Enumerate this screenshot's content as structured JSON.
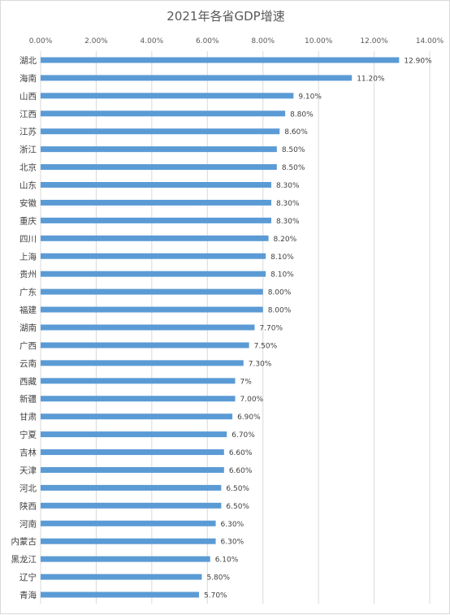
{
  "chart_data": {
    "type": "bar",
    "orientation": "horizontal",
    "title": "2021年各省GDP增速",
    "xlim": [
      0,
      14
    ],
    "x_ticks": [
      0,
      2,
      4,
      6,
      8,
      10,
      12,
      14
    ],
    "x_tick_labels": [
      "0.00%",
      "2.00%",
      "4.00%",
      "6.00%",
      "8.00%",
      "10.00%",
      "12.00%",
      "14.00%"
    ],
    "axis_position": "top",
    "grid": true,
    "bar_color": "#5b9bd5",
    "categories": [
      "湖北",
      "海南",
      "山西",
      "江西",
      "江苏",
      "浙江",
      "北京",
      "山东",
      "安徽",
      "重庆",
      "四川",
      "上海",
      "贵州",
      "广东",
      "福建",
      "湖南",
      "广西",
      "云南",
      "西藏",
      "新疆",
      "甘肃",
      "宁夏",
      "吉林",
      "天津",
      "河北",
      "陕西",
      "河南",
      "内蒙古",
      "黑龙江",
      "辽宁",
      "青海"
    ],
    "values": [
      12.9,
      11.2,
      9.1,
      8.8,
      8.6,
      8.5,
      8.5,
      8.3,
      8.3,
      8.3,
      8.2,
      8.1,
      8.1,
      8.0,
      8.0,
      7.7,
      7.5,
      7.3,
      7.0,
      7.0,
      6.9,
      6.7,
      6.6,
      6.6,
      6.5,
      6.5,
      6.3,
      6.3,
      6.1,
      5.8,
      5.7
    ],
    "data_labels": [
      "12.90%",
      "11.20%",
      "9.10%",
      "8.80%",
      "8.60%",
      "8.50%",
      "8.50%",
      "8.30%",
      "8.30%",
      "8.30%",
      "8.20%",
      "8.10%",
      "8.10%",
      "8.00%",
      "8.00%",
      "7.70%",
      "7.50%",
      "7.30%",
      "7%",
      "7.00%",
      "6.90%",
      "6.70%",
      "6.60%",
      "6.60%",
      "6.50%",
      "6.50%",
      "6.30%",
      "6.30%",
      "6.10%",
      "5.80%",
      "5.70%"
    ]
  }
}
